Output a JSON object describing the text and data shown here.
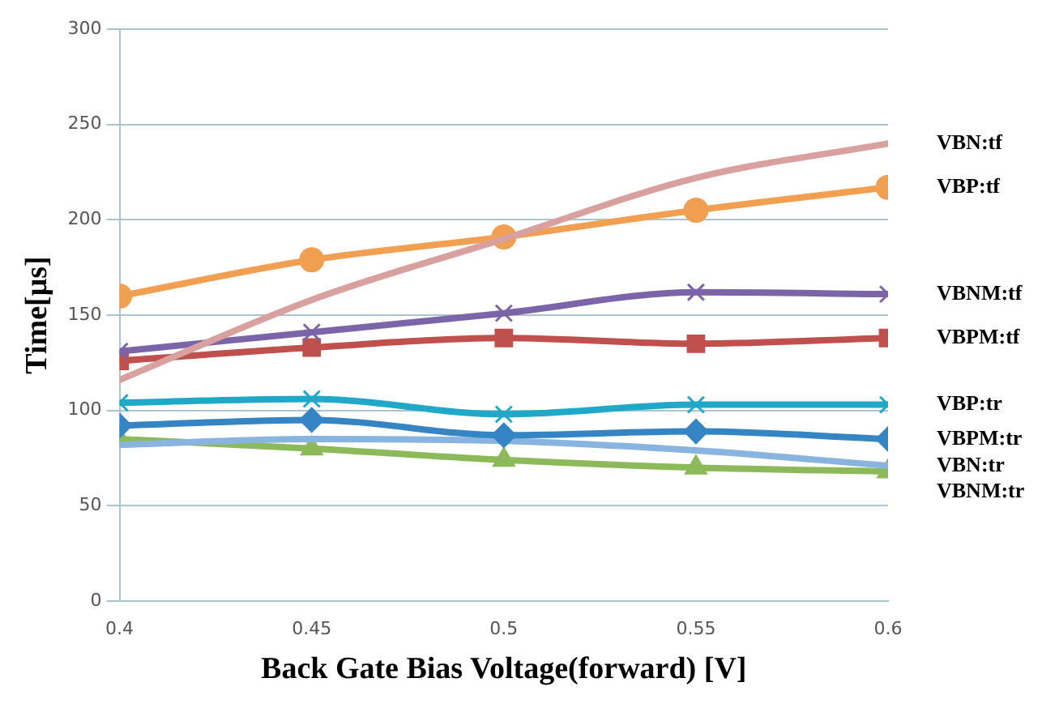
{
  "chart_data": {
    "type": "line",
    "xlabel": "Back Gate Bias Voltage(forward) [V]",
    "ylabel": "Time[μs]",
    "x": [
      0.4,
      0.45,
      0.5,
      0.55,
      0.6
    ],
    "xlim": [
      0.4,
      0.6
    ],
    "xticks": [
      0.4,
      0.45,
      0.5,
      0.55,
      0.6
    ],
    "ylim": [
      0,
      300
    ],
    "yticks": [
      0,
      50,
      100,
      150,
      200,
      250,
      300
    ],
    "grid": "y",
    "legend": false,
    "series": [
      {
        "name": "VBN:tf",
        "color": "#d9a0a0",
        "marker": "none",
        "values": [
          116,
          158,
          190,
          222,
          240
        ]
      },
      {
        "name": "VBP:tf",
        "color": "#f0a050",
        "marker": "circle",
        "values": [
          160,
          179,
          191,
          205,
          217
        ]
      },
      {
        "name": "VBNM:tf",
        "color": "#7b64a8",
        "marker": "cross",
        "values": [
          131,
          141,
          151,
          162,
          161
        ]
      },
      {
        "name": "VBPM:tf",
        "color": "#c0504d",
        "marker": "square",
        "values": [
          126,
          133,
          138,
          135,
          138
        ]
      },
      {
        "name": "VBP:tr",
        "color": "#1fa8c8",
        "marker": "cross",
        "values": [
          104,
          106,
          98,
          103,
          103
        ]
      },
      {
        "name": "VBPM:tr",
        "color": "#3585c4",
        "marker": "diamond",
        "values": [
          92,
          95,
          87,
          89,
          85
        ]
      },
      {
        "name": "VBN:tr",
        "color": "#8ab4e0",
        "marker": "none",
        "values": [
          82,
          85,
          84,
          79,
          71
        ]
      },
      {
        "name": "VBNM:tr",
        "color": "#8cba5a",
        "marker": "triangle",
        "values": [
          85,
          80,
          74,
          70,
          68
        ]
      }
    ]
  }
}
